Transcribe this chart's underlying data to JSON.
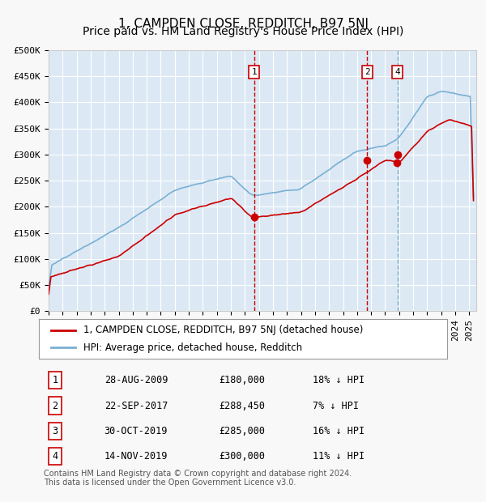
{
  "title": "1, CAMPDEN CLOSE, REDDITCH, B97 5NJ",
  "subtitle": "Price paid vs. HM Land Registry's House Price Index (HPI)",
  "ylim": [
    0,
    500000
  ],
  "yticks": [
    0,
    50000,
    100000,
    150000,
    200000,
    250000,
    300000,
    350000,
    400000,
    450000,
    500000
  ],
  "ytick_labels": [
    "£0",
    "£50K",
    "£100K",
    "£150K",
    "£200K",
    "£250K",
    "£300K",
    "£350K",
    "£400K",
    "£450K",
    "£500K"
  ],
  "xlim_start": 1995.0,
  "xlim_end": 2025.5,
  "bg_color": "#dce9f5",
  "plot_bg_color": "#dce9f5",
  "grid_color": "#ffffff",
  "red_line_color": "#cc0000",
  "blue_line_color": "#7ab0d4",
  "vline_color_red": "#cc0000",
  "vline_color_blue": "#7ab0d4",
  "sale_points": [
    {
      "year": 2009.66,
      "price": 180000,
      "label": "1"
    },
    {
      "year": 2017.73,
      "price": 288450,
      "label": "2"
    },
    {
      "year": 2019.83,
      "price": 285000,
      "label": "3"
    },
    {
      "year": 2019.87,
      "price": 300000,
      "label": "4"
    }
  ],
  "vlines_red": [
    2009.66,
    2017.73
  ],
  "vlines_blue": [
    2019.87
  ],
  "legend_entries": [
    "1, CAMPDEN CLOSE, REDDITCH, B97 5NJ (detached house)",
    "HPI: Average price, detached house, Redditch"
  ],
  "table_rows": [
    {
      "num": "1",
      "date": "28-AUG-2009",
      "price": "£180,000",
      "pct": "18% ↓ HPI"
    },
    {
      "num": "2",
      "date": "22-SEP-2017",
      "price": "£288,450",
      "pct": "7% ↓ HPI"
    },
    {
      "num": "3",
      "date": "30-OCT-2019",
      "price": "£285,000",
      "pct": "16% ↓ HPI"
    },
    {
      "num": "4",
      "date": "14-NOV-2019",
      "price": "£300,000",
      "pct": "11% ↓ HPI"
    }
  ],
  "footer": "Contains HM Land Registry data © Crown copyright and database right 2024.\nThis data is licensed under the Open Government Licence v3.0.",
  "title_fontsize": 11,
  "subtitle_fontsize": 10,
  "tick_fontsize": 8,
  "legend_fontsize": 8.5,
  "table_fontsize": 8.5,
  "footer_fontsize": 7
}
